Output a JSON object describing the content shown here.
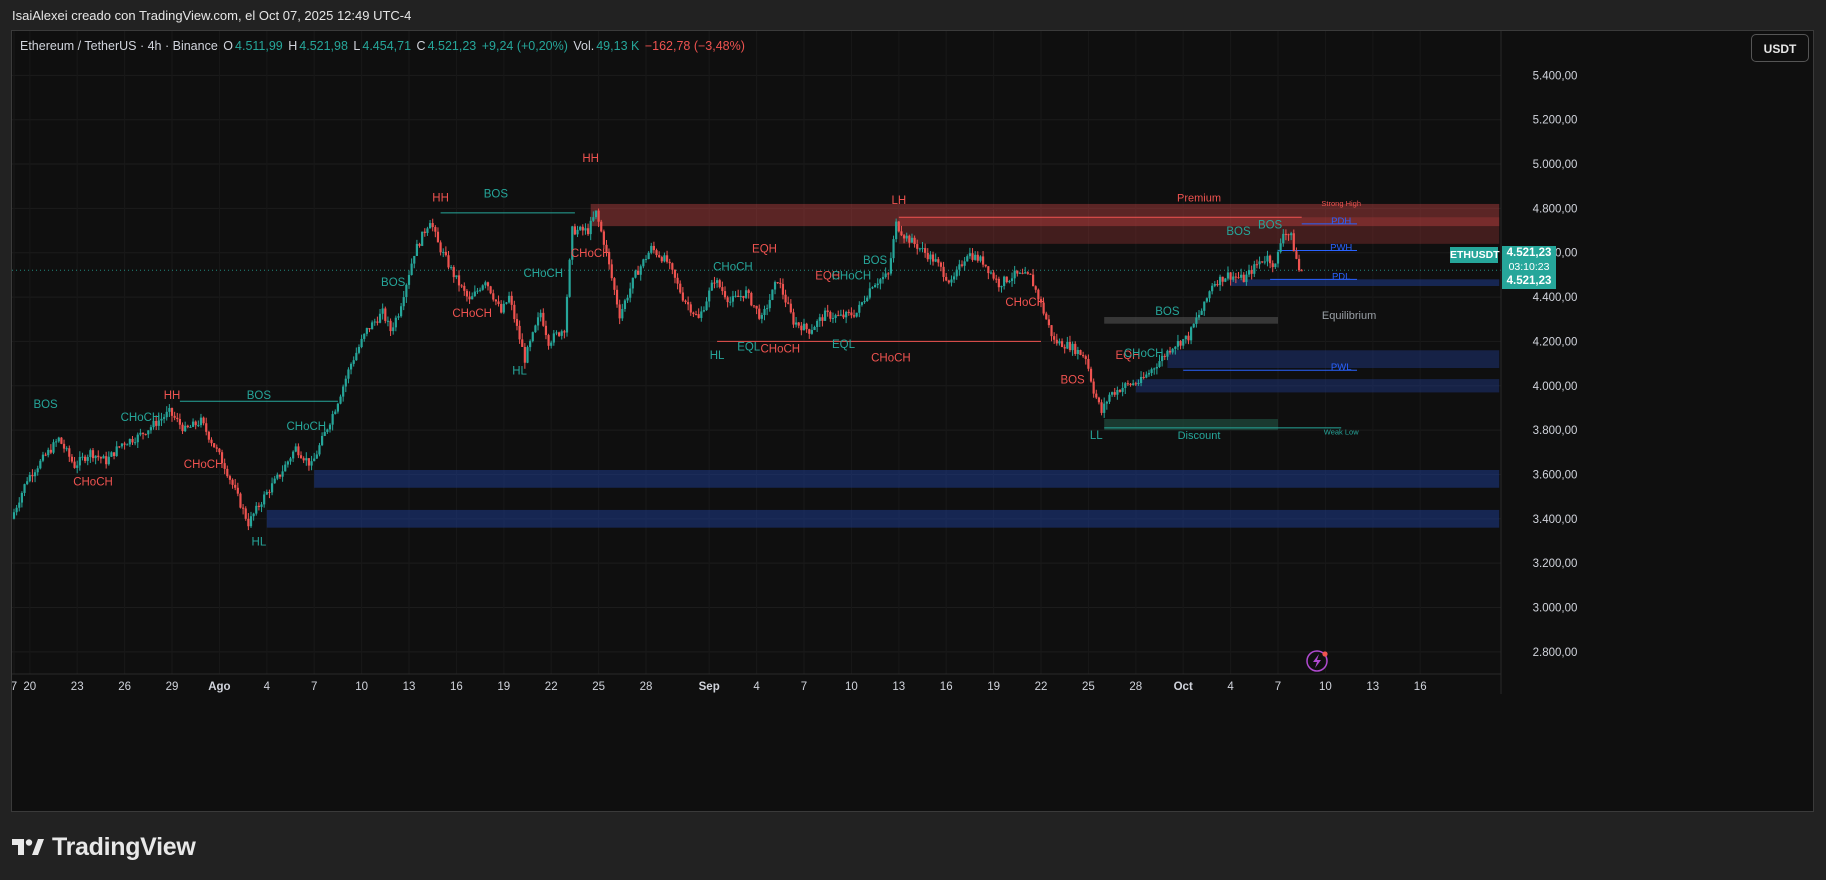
{
  "header": {
    "credit": "IsaiAlexei creado con TradingView.com, el Oct 07, 2025 12:49 UTC-4"
  },
  "legend": {
    "symbol": "Ethereum / TetherUS · 4h · Binance",
    "open_key": "O",
    "open": "4.511,99",
    "high_key": "H",
    "high": "4.521,98",
    "low_key": "L",
    "low": "4.454,71",
    "close_key": "C",
    "close": "4.521,23",
    "change": "+9,24 (+0,20%)",
    "vol_key": "Vol.",
    "vol": "49,13 K",
    "vol_change": "−162,78 (−3,48%)"
  },
  "currency_button": "USDT",
  "price_tags": {
    "symbol": "ETHUSDT",
    "price": "4.521,23",
    "countdown": "03:10:23",
    "price2": "4.521,23"
  },
  "footer": {
    "brand": "TradingView"
  },
  "colors": {
    "up": "#26a69a",
    "down": "#ef5350",
    "zone_blue": "#1e3a8a",
    "zone_red": "#b84040",
    "zone_green": "#1f4d3f",
    "blue_line": "#2962ff"
  },
  "icons": {
    "logo": "tradingview-logo-icon",
    "flash": "lightning-icon"
  },
  "chart_data": {
    "type": "candlestick",
    "timeframe": "4h",
    "ylim": [
      2700,
      5600
    ],
    "y_ticks": [
      "2.800,00",
      "3.000,00",
      "3.200,00",
      "3.400,00",
      "3.600,00",
      "3.800,00",
      "4.000,00",
      "4.200,00",
      "4.400,00",
      "4.600,00",
      "4.800,00",
      "5.000,00",
      "5.200,00",
      "5.400,00"
    ],
    "y_tick_values": [
      2800,
      3000,
      3200,
      3400,
      3600,
      3800,
      4000,
      4200,
      4400,
      4600,
      4800,
      5000,
      5200,
      5400
    ],
    "x_ticks": [
      {
        "label": "7",
        "day": 0
      },
      {
        "label": "20",
        "day": 1
      },
      {
        "label": "23",
        "day": 4
      },
      {
        "label": "26",
        "day": 7
      },
      {
        "label": "29",
        "day": 10
      },
      {
        "label": "Ago",
        "day": 13
      },
      {
        "label": "4",
        "day": 16
      },
      {
        "label": "7",
        "day": 19
      },
      {
        "label": "10",
        "day": 22
      },
      {
        "label": "13",
        "day": 25
      },
      {
        "label": "16",
        "day": 28
      },
      {
        "label": "19",
        "day": 31
      },
      {
        "label": "22",
        "day": 34
      },
      {
        "label": "25",
        "day": 37
      },
      {
        "label": "28",
        "day": 40
      },
      {
        "label": "Sep",
        "day": 44
      },
      {
        "label": "4",
        "day": 47
      },
      {
        "label": "7",
        "day": 50
      },
      {
        "label": "10",
        "day": 53
      },
      {
        "label": "13",
        "day": 56
      },
      {
        "label": "16",
        "day": 59
      },
      {
        "label": "19",
        "day": 62
      },
      {
        "label": "22",
        "day": 65
      },
      {
        "label": "25",
        "day": 68
      },
      {
        "label": "28",
        "day": 71
      },
      {
        "label": "Oct",
        "day": 74
      },
      {
        "label": "4",
        "day": 77
      },
      {
        "label": "7",
        "day": 80
      },
      {
        "label": "10",
        "day": 83
      },
      {
        "label": "13",
        "day": 86
      },
      {
        "label": "16",
        "day": 89
      }
    ],
    "x_range": [
      0,
      94
    ],
    "price_keypoints": [
      [
        0,
        3400
      ],
      [
        1,
        3580
      ],
      [
        3,
        3760
      ],
      [
        4,
        3640
      ],
      [
        5,
        3700
      ],
      [
        6,
        3660
      ],
      [
        7,
        3740
      ],
      [
        8,
        3770
      ],
      [
        10,
        3880
      ],
      [
        11,
        3800
      ],
      [
        12,
        3840
      ],
      [
        13.5,
        3640
      ],
      [
        15,
        3380
      ],
      [
        16,
        3500
      ],
      [
        17,
        3600
      ],
      [
        18,
        3720
      ],
      [
        19,
        3640
      ],
      [
        20.5,
        3900
      ],
      [
        21.5,
        4100
      ],
      [
        22.5,
        4250
      ],
      [
        23.5,
        4330
      ],
      [
        24,
        4250
      ],
      [
        24.5,
        4330
      ],
      [
        25.5,
        4600
      ],
      [
        26.5,
        4750
      ],
      [
        27,
        4640
      ],
      [
        28,
        4500
      ],
      [
        29,
        4380
      ],
      [
        30,
        4480
      ],
      [
        31,
        4330
      ],
      [
        31.5,
        4400
      ],
      [
        32.5,
        4120
      ],
      [
        33.5,
        4330
      ],
      [
        34,
        4200
      ],
      [
        35,
        4260
      ],
      [
        35.5,
        4700
      ],
      [
        36.5,
        4700
      ],
      [
        37,
        4780
      ],
      [
        37.5,
        4650
      ],
      [
        38.5,
        4320
      ],
      [
        39.5,
        4500
      ],
      [
        40.5,
        4620
      ],
      [
        41.5,
        4560
      ],
      [
        42.5,
        4400
      ],
      [
        43.5,
        4300
      ],
      [
        44.5,
        4480
      ],
      [
        45.5,
        4380
      ],
      [
        46.5,
        4420
      ],
      [
        47.5,
        4300
      ],
      [
        48.5,
        4480
      ],
      [
        49.5,
        4290
      ],
      [
        50.5,
        4250
      ],
      [
        51.5,
        4320
      ],
      [
        52.5,
        4310
      ],
      [
        53.5,
        4330
      ],
      [
        54.5,
        4460
      ],
      [
        55.5,
        4500
      ],
      [
        56,
        4730
      ],
      [
        56.5,
        4680
      ],
      [
        57.5,
        4620
      ],
      [
        58.5,
        4560
      ],
      [
        59.5,
        4460
      ],
      [
        60.5,
        4600
      ],
      [
        61.5,
        4560
      ],
      [
        62.5,
        4460
      ],
      [
        63.5,
        4500
      ],
      [
        64.5,
        4490
      ],
      [
        65,
        4400
      ],
      [
        66,
        4200
      ],
      [
        67,
        4180
      ],
      [
        68,
        4130
      ],
      [
        68.5,
        3980
      ],
      [
        69,
        3880
      ],
      [
        69.5,
        3960
      ],
      [
        70.5,
        4000
      ],
      [
        71.5,
        4020
      ],
      [
        72.5,
        4100
      ],
      [
        73.5,
        4180
      ],
      [
        74.5,
        4220
      ],
      [
        75,
        4300
      ],
      [
        75.5,
        4360
      ],
      [
        76,
        4460
      ],
      [
        77,
        4500
      ],
      [
        78,
        4480
      ],
      [
        79,
        4560
      ],
      [
        79.5,
        4580
      ],
      [
        80,
        4540
      ],
      [
        80.5,
        4700
      ],
      [
        81,
        4670
      ],
      [
        81.5,
        4521
      ]
    ],
    "labels": [
      {
        "text": "BOS",
        "day": 2,
        "price": 3900,
        "color": "up"
      },
      {
        "text": "CHoCH",
        "day": 5,
        "price": 3550,
        "color": "down"
      },
      {
        "text": "CHoCH",
        "day": 8,
        "price": 3840,
        "color": "up"
      },
      {
        "text": "HH",
        "day": 10,
        "price": 3940,
        "color": "down"
      },
      {
        "text": "CHoCH",
        "day": 12,
        "price": 3630,
        "color": "down"
      },
      {
        "text": "BOS",
        "day": 15.5,
        "price": 3940,
        "color": "up"
      },
      {
        "text": "HL",
        "day": 15.5,
        "price": 3280,
        "color": "up"
      },
      {
        "text": "CHoCH",
        "day": 18.5,
        "price": 3800,
        "color": "up"
      },
      {
        "text": "BOS",
        "day": 24,
        "price": 4450,
        "color": "up"
      },
      {
        "text": "HH",
        "day": 27,
        "price": 4830,
        "color": "down"
      },
      {
        "text": "BOS",
        "day": 30.5,
        "price": 4850,
        "color": "up"
      },
      {
        "text": "CHoCH",
        "day": 29,
        "price": 4310,
        "color": "down"
      },
      {
        "text": "HL",
        "day": 32,
        "price": 4050,
        "color": "up"
      },
      {
        "text": "CHoCH",
        "day": 33.5,
        "price": 4490,
        "color": "up"
      },
      {
        "text": "HH",
        "day": 36.5,
        "price": 5010,
        "color": "down"
      },
      {
        "text": "CHoCH",
        "day": 36.5,
        "price": 4580,
        "color": "down"
      },
      {
        "text": "CHoCH",
        "day": 45.5,
        "price": 4520,
        "color": "up"
      },
      {
        "text": "EQH",
        "day": 47.5,
        "price": 4600,
        "color": "down"
      },
      {
        "text": "HL",
        "day": 44.5,
        "price": 4120,
        "color": "up"
      },
      {
        "text": "EQL",
        "day": 46.5,
        "price": 4160,
        "color": "up"
      },
      {
        "text": "CHoCH",
        "day": 48.5,
        "price": 4150,
        "color": "down"
      },
      {
        "text": "EQH",
        "day": 51.5,
        "price": 4480,
        "color": "down"
      },
      {
        "text": "CHoCH",
        "day": 53,
        "price": 4480,
        "color": "up"
      },
      {
        "text": "BOS",
        "day": 54.5,
        "price": 4550,
        "color": "up"
      },
      {
        "text": "EQL",
        "day": 52.5,
        "price": 4170,
        "color": "up"
      },
      {
        "text": "CHoCH",
        "day": 55.5,
        "price": 4110,
        "color": "down"
      },
      {
        "text": "LH",
        "day": 56,
        "price": 4820,
        "color": "down"
      },
      {
        "text": "CHoCH",
        "day": 64,
        "price": 4360,
        "color": "down"
      },
      {
        "text": "BOS",
        "day": 67,
        "price": 4010,
        "color": "down"
      },
      {
        "text": "EQH",
        "day": 70.5,
        "price": 4120,
        "color": "down"
      },
      {
        "text": "CHoCH",
        "day": 71.5,
        "price": 4130,
        "color": "up"
      },
      {
        "text": "LL",
        "day": 68.5,
        "price": 3760,
        "color": "up"
      },
      {
        "text": "BOS",
        "day": 73,
        "price": 4320,
        "color": "up"
      },
      {
        "text": "BOS",
        "day": 77.5,
        "price": 4680,
        "color": "up"
      },
      {
        "text": "BOS",
        "day": 79.5,
        "price": 4710,
        "color": "up"
      }
    ],
    "zone_labels": [
      {
        "text": "Premium",
        "day": 75,
        "price": 4830,
        "color": "down"
      },
      {
        "text": "Strong High",
        "day": 84,
        "price": 4810,
        "color": "down"
      },
      {
        "text": "Equilibrium",
        "day": 84.5,
        "price": 4300,
        "color": "neutral"
      },
      {
        "text": "Discount",
        "day": 75,
        "price": 3760,
        "color": "up"
      },
      {
        "text": "Weak Low",
        "day": 84,
        "price": 3780,
        "color": "up"
      },
      {
        "text": "PDH",
        "day": 84,
        "price": 4730,
        "color": "blue"
      },
      {
        "text": "PWH",
        "day": 84,
        "price": 4610,
        "color": "blue"
      },
      {
        "text": "PDL",
        "day": 84,
        "price": 4480,
        "color": "blue"
      },
      {
        "text": "PWL",
        "day": 84,
        "price": 4070,
        "color": "blue"
      }
    ],
    "zones": [
      {
        "from": 36.5,
        "to": 94,
        "low": 4720,
        "high": 4820,
        "color": "zone_red",
        "alpha": 0.45
      },
      {
        "from": 56,
        "to": 94,
        "low": 4640,
        "high": 4760,
        "color": "zone_red",
        "alpha": 0.3
      },
      {
        "from": 69,
        "to": 80,
        "low": 4280,
        "high": 4310,
        "color": "neutral",
        "alpha": 0.55
      },
      {
        "from": 69,
        "to": 80,
        "low": 3800,
        "high": 3850,
        "color": "zone_green",
        "alpha": 0.7
      },
      {
        "from": 19,
        "to": 94,
        "low": 3540,
        "high": 3620,
        "color": "zone_blue",
        "alpha": 0.55
      },
      {
        "from": 16,
        "to": 94,
        "low": 3360,
        "high": 3440,
        "color": "zone_blue",
        "alpha": 0.55
      },
      {
        "from": 73,
        "to": 94,
        "low": 4080,
        "high": 4160,
        "color": "zone_blue",
        "alpha": 0.45
      },
      {
        "from": 71,
        "to": 94,
        "low": 3970,
        "high": 4030,
        "color": "zone_blue",
        "alpha": 0.45
      },
      {
        "from": 77,
        "to": 94,
        "low": 4450,
        "high": 4480,
        "color": "zone_blue",
        "alpha": 0.55
      }
    ],
    "level_lines": [
      {
        "from": 10.5,
        "to": 20.5,
        "price": 3930,
        "color": "up"
      },
      {
        "from": 27,
        "to": 35.5,
        "price": 4780,
        "color": "up"
      },
      {
        "from": 44.5,
        "to": 65,
        "price": 4200,
        "color": "down"
      },
      {
        "from": 56,
        "to": 81.5,
        "price": 4760,
        "color": "down"
      },
      {
        "from": 81.5,
        "to": 85,
        "price": 4730,
        "color": "blue"
      },
      {
        "from": 80,
        "to": 85,
        "price": 4610,
        "color": "blue"
      },
      {
        "from": 79.5,
        "to": 85,
        "price": 4480,
        "color": "blue"
      },
      {
        "from": 74,
        "to": 85,
        "price": 4070,
        "color": "blue"
      },
      {
        "from": 69,
        "to": 84,
        "price": 3810,
        "color": "up"
      }
    ],
    "current_price": 4521.23
  }
}
